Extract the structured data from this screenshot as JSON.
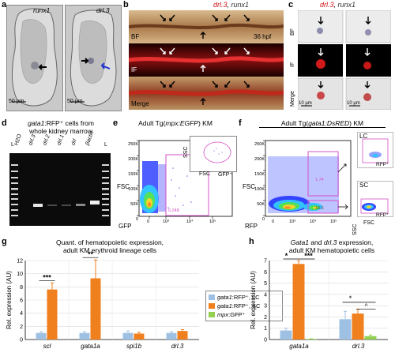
{
  "panel_a": {
    "label": "a",
    "stains": [
      "runx1",
      "drl.3"
    ],
    "scalebars": [
      "50 µm",
      "50 µm"
    ]
  },
  "panel_b": {
    "label": "b",
    "title_drl": "drl.3",
    "title_sep": ", ",
    "title_runx": "runx1",
    "bf": "BF",
    "time": "36 hpf",
    "if": "IF",
    "merge": "Merge"
  },
  "panel_c": {
    "label": "c",
    "title_drl": "drl.3",
    "title_sep": ", ",
    "title_runx": "runx1",
    "rows": [
      "BF",
      "IF",
      "Merge"
    ],
    "scalebars": [
      "10 µm",
      "10 µm"
    ]
  },
  "panel_d": {
    "label": "d",
    "title_gene": "gata1",
    "title_rest": ":RFP⁺ cells from",
    "title_line2": "whole kidney marrow",
    "lanes": [
      "L",
      "H2O",
      "drl.3",
      "drl.2",
      "drl.1",
      "drl",
      "βactin",
      "L"
    ]
  },
  "panel_e": {
    "label": "e",
    "title_pre": "Adult Tg(",
    "title_gene": "mpx:EGFP",
    "title_post": ") KM",
    "y_ticks": [
      "250K",
      "200K",
      "150K",
      "100K",
      "50K",
      "0"
    ],
    "x_ticks": [
      "0",
      "10³",
      "10⁴",
      "10⁵"
    ],
    "y_axis": "FSC",
    "x_axis": "GFP",
    "gate_pct": "0.248",
    "inset_y": "SSC",
    "inset_x": "FSC",
    "inset_gate": "GFP⁺"
  },
  "panel_f": {
    "label": "f",
    "title_pre": "Adult Tg(",
    "title_gene": "gata1:DsRED",
    "title_post": ") KM",
    "y_ticks": [
      "250K",
      "200K",
      "150K",
      "100K",
      "50K",
      "0"
    ],
    "x_ticks": [
      "0",
      "10³",
      "10⁴",
      "10⁵"
    ],
    "y_axis": "FSC",
    "x_axis": "RFP",
    "gate_lc_pct": "1.74",
    "gate_sc_pct": "16.6",
    "inset_lc": "LC",
    "inset_sc": "SC",
    "inset_gate": "RFP⁺",
    "inset_y": "SSC",
    "inset_x": "FSC"
  },
  "panel_g": {
    "label": "g",
    "title_line1": "Quant. of hematopoietic expression,",
    "title_line2": "adult KM erythroid lineage cells",
    "y_axis": "Rel. expression (AU)",
    "y_ticks": [
      "0",
      "2",
      "4",
      "6",
      "8",
      "10",
      "12"
    ],
    "significance": [
      "***",
      "**"
    ]
  },
  "panel_h": {
    "label": "h",
    "title_gene1": "Gata1",
    "title_mid": " and ",
    "title_gene2": "drl.3",
    "title_rest": " expression,",
    "title_line2": "adult KM hematopoietic cells",
    "y_axis": "Rel. expression (AU)",
    "y_ticks": [
      "0",
      "1",
      "2",
      "3",
      "4",
      "5",
      "6",
      "7"
    ],
    "significance": [
      "*",
      "***",
      "*",
      "^"
    ]
  },
  "legend": {
    "items": [
      {
        "gene": "gata1",
        "rest": ":RFP⁺, LC",
        "color": "#9ec1e3"
      },
      {
        "gene": "gata1",
        "rest": ":RFP⁺, SC",
        "color": "#f07f1e"
      },
      {
        "gene": "mpx",
        "rest": ":GFP⁺",
        "color": "#92d050"
      }
    ]
  },
  "chart_data": [
    {
      "type": "bar",
      "ylabel": "Rel. expression (AU)",
      "ylim": [
        0,
        12
      ],
      "categories": [
        "scl",
        "gata1a",
        "spi1b",
        "drl.3"
      ],
      "series": [
        {
          "name": "gata1:RFP⁺, LC",
          "values": [
            1.0,
            1.0,
            1.0,
            1.0
          ],
          "errors": [
            0.2,
            0.2,
            0.3,
            0.2
          ]
        },
        {
          "name": "gata1:RFP⁺, SC",
          "values": [
            7.6,
            9.3,
            0.9,
            1.3
          ],
          "errors": [
            1.0,
            2.8,
            0.2,
            0.2
          ]
        }
      ],
      "colors": [
        "#9ec1e3",
        "#f07f1e"
      ]
    },
    {
      "type": "bar",
      "ylabel": "Rel. expression (AU)",
      "ylim": [
        0,
        7
      ],
      "categories": [
        "gata1a",
        "drl.3"
      ],
      "series": [
        {
          "name": "gata1:RFP⁺, LC",
          "values": [
            0.8,
            1.8
          ],
          "errors": [
            0.2,
            0.7
          ]
        },
        {
          "name": "gata1:RFP⁺, SC",
          "values": [
            6.7,
            2.3
          ],
          "errors": [
            0.3,
            0.4
          ]
        },
        {
          "name": "mpx:GFP⁺",
          "values": [
            0.05,
            0.3
          ],
          "errors": [
            0.02,
            0.1
          ]
        }
      ],
      "colors": [
        "#9ec1e3",
        "#f07f1e",
        "#92d050"
      ]
    }
  ]
}
